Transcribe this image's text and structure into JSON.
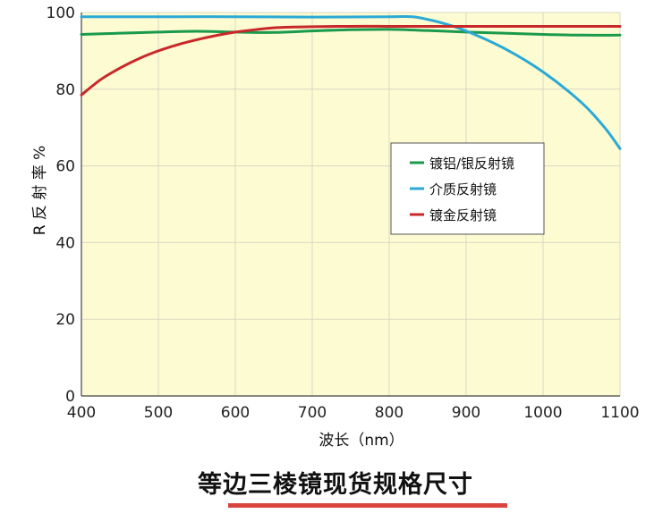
{
  "chart_data": {
    "type": "line",
    "xlabel": "波长（nm）",
    "ylabel": "R 反 射 率 %",
    "xlim": [
      400,
      1100
    ],
    "ylim": [
      0,
      100
    ],
    "xticks": [
      400,
      500,
      600,
      700,
      800,
      900,
      1000,
      1100
    ],
    "yticks": [
      0,
      20,
      40,
      60,
      80,
      100
    ],
    "grid": true,
    "legend_position": "right-center",
    "background_color": "#fdfbd2",
    "series": [
      {
        "name": "镀铝/银反射镜",
        "color": "#1a9a4c",
        "x": [
          400,
          450,
          500,
          550,
          600,
          650,
          700,
          750,
          800,
          850,
          900,
          950,
          1000,
          1050,
          1100
        ],
        "y": [
          94.3,
          94.6,
          94.9,
          95.1,
          94.9,
          94.8,
          95.2,
          95.5,
          95.6,
          95.3,
          94.9,
          94.6,
          94.3,
          94.1,
          94.1
        ]
      },
      {
        "name": "介质反射镜",
        "color": "#2aa9d6",
        "x": [
          400,
          500,
          600,
          700,
          800,
          830,
          850,
          870,
          900,
          950,
          1000,
          1050,
          1080,
          1100
        ],
        "y": [
          98.9,
          98.9,
          98.9,
          98.8,
          98.9,
          98.9,
          98.2,
          97.2,
          95.2,
          90.6,
          84.5,
          76.5,
          70.0,
          64.5
        ]
      },
      {
        "name": "镀金反射镜",
        "color": "#c8282a",
        "x": [
          400,
          425,
          450,
          475,
          500,
          525,
          550,
          575,
          600,
          625,
          650,
          675,
          700,
          750,
          800,
          850,
          900,
          1000,
          1100
        ],
        "y": [
          78.5,
          82.5,
          85.5,
          88.0,
          90.0,
          91.6,
          92.9,
          94.0,
          94.9,
          95.5,
          96.0,
          96.2,
          96.3,
          96.4,
          96.4,
          96.4,
          96.4,
          96.4,
          96.4
        ]
      }
    ]
  },
  "caption": "等边三棱镜现货规格尺寸"
}
